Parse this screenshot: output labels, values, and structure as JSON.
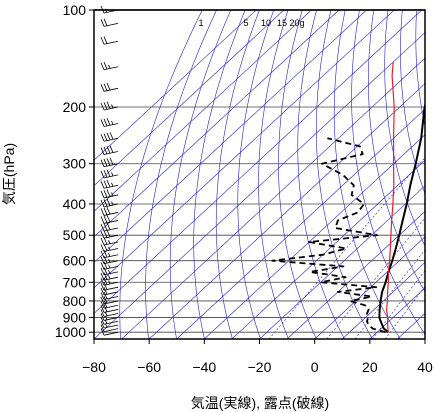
{
  "chart_data": {
    "type": "line",
    "subtype": "skew-T log-p aerological diagram",
    "xlabel": "気温(実線), 露点(破線)",
    "ylabel": "気圧(hPa)",
    "x_ticks": [
      -80,
      -60,
      -40,
      -20,
      0,
      20,
      40
    ],
    "y_ticks": [
      100,
      200,
      300,
      400,
      500,
      600,
      700,
      800,
      900,
      1000
    ],
    "xlim": [
      -80,
      40
    ],
    "ylim": [
      1050,
      100
    ],
    "y_scale": "log",
    "mixing_ratio_labels": [
      "1",
      "5",
      "10",
      "15",
      "20g"
    ],
    "mixing_ratios": [
      1,
      5,
      10,
      15,
      20
    ],
    "colors": {
      "temperature": "#000000",
      "dewpoint": "#000000",
      "parcel": "#e8202a",
      "guides": "#1f1fd6",
      "isobars": "#444444"
    },
    "series": [
      {
        "style": "solid",
        "points": [
          {
            "p": 1000,
            "t": 24
          },
          {
            "p": 975,
            "t": 21
          },
          {
            "p": 950,
            "t": 19
          },
          {
            "p": 925,
            "t": 17
          },
          {
            "p": 900,
            "t": 15
          },
          {
            "p": 875,
            "t": 13.5
          },
          {
            "p": 850,
            "t": 12
          },
          {
            "p": 800,
            "t": 9
          },
          {
            "p": 750,
            "t": 6
          },
          {
            "p": 700,
            "t": 3.5
          },
          {
            "p": 650,
            "t": 0.5
          },
          {
            "p": 600,
            "t": -2.5
          },
          {
            "p": 550,
            "t": -6
          },
          {
            "p": 500,
            "t": -10
          },
          {
            "p": 450,
            "t": -14.5
          },
          {
            "p": 400,
            "t": -19.5
          },
          {
            "p": 350,
            "t": -25.5
          },
          {
            "p": 300,
            "t": -32
          },
          {
            "p": 250,
            "t": -40
          },
          {
            "p": 200,
            "t": -51
          },
          {
            "p": 175,
            "t": -56
          },
          {
            "p": 150,
            "t": -61
          },
          {
            "p": 125,
            "t": -65
          },
          {
            "p": 110,
            "t": -69
          },
          {
            "p": 100,
            "t": -70
          }
        ]
      },
      {
        "style": "dashed",
        "points": [
          {
            "p": 1000,
            "t": 23
          },
          {
            "p": 975,
            "t": 17
          },
          {
            "p": 950,
            "t": 14
          },
          {
            "p": 925,
            "t": 12
          },
          {
            "p": 900,
            "t": 11
          },
          {
            "p": 875,
            "t": 9
          },
          {
            "p": 850,
            "t": 8
          },
          {
            "p": 825,
            "t": 5
          },
          {
            "p": 800,
            "t": -2
          },
          {
            "p": 775,
            "t": 4
          },
          {
            "p": 750,
            "t": -10
          },
          {
            "p": 725,
            "t": 2
          },
          {
            "p": 700,
            "t": -20
          },
          {
            "p": 675,
            "t": -13
          },
          {
            "p": 650,
            "t": -28
          },
          {
            "p": 625,
            "t": -18
          },
          {
            "p": 600,
            "t": -46
          },
          {
            "p": 575,
            "t": -30
          },
          {
            "p": 550,
            "t": -24
          },
          {
            "p": 525,
            "t": -40
          },
          {
            "p": 500,
            "t": -18
          },
          {
            "p": 475,
            "t": -36
          },
          {
            "p": 450,
            "t": -38
          },
          {
            "p": 425,
            "t": -34
          },
          {
            "p": 400,
            "t": -35
          },
          {
            "p": 375,
            "t": -43
          },
          {
            "p": 350,
            "t": -46
          },
          {
            "p": 325,
            "t": -54
          },
          {
            "p": 300,
            "t": -66
          },
          {
            "p": 280,
            "t": -55
          },
          {
            "p": 265,
            "t": -59
          },
          {
            "p": 250,
            "t": -74
          }
        ]
      },
      {
        "style": "solid-red",
        "points": [
          {
            "p": 1000,
            "t": 24
          },
          {
            "p": 950,
            "t": 21
          },
          {
            "p": 900,
            "t": 18
          },
          {
            "p": 850,
            "t": 14.5
          },
          {
            "p": 800,
            "t": 11.5
          },
          {
            "p": 750,
            "t": 8
          },
          {
            "p": 700,
            "t": 4.5
          },
          {
            "p": 650,
            "t": 0.5
          },
          {
            "p": 600,
            "t": -3.5
          },
          {
            "p": 550,
            "t": -8
          },
          {
            "p": 500,
            "t": -13
          },
          {
            "p": 450,
            "t": -18.5
          },
          {
            "p": 400,
            "t": -24.5
          },
          {
            "p": 350,
            "t": -31.5
          },
          {
            "p": 300,
            "t": -40
          },
          {
            "p": 250,
            "t": -50
          },
          {
            "p": 200,
            "t": -62
          },
          {
            "p": 160,
            "t": -75
          },
          {
            "p": 145,
            "t": -80
          }
        ]
      }
    ],
    "wind_barbs": [
      {
        "p": 1000,
        "speed": 10
      },
      {
        "p": 975,
        "speed": 10
      },
      {
        "p": 950,
        "speed": 15
      },
      {
        "p": 925,
        "speed": 15
      },
      {
        "p": 900,
        "speed": 15
      },
      {
        "p": 875,
        "speed": 15
      },
      {
        "p": 850,
        "speed": 20
      },
      {
        "p": 825,
        "speed": 20
      },
      {
        "p": 800,
        "speed": 20
      },
      {
        "p": 775,
        "speed": 20
      },
      {
        "p": 750,
        "speed": 20
      },
      {
        "p": 725,
        "speed": 20
      },
      {
        "p": 700,
        "speed": 25
      },
      {
        "p": 675,
        "speed": 25
      },
      {
        "p": 650,
        "speed": 25
      },
      {
        "p": 625,
        "speed": 25
      },
      {
        "p": 600,
        "speed": 25
      },
      {
        "p": 575,
        "speed": 25
      },
      {
        "p": 550,
        "speed": 25
      },
      {
        "p": 525,
        "speed": 25
      },
      {
        "p": 500,
        "speed": 30
      },
      {
        "p": 475,
        "speed": 30
      },
      {
        "p": 450,
        "speed": 30
      },
      {
        "p": 425,
        "speed": 30
      },
      {
        "p": 400,
        "speed": 35
      },
      {
        "p": 375,
        "speed": 35
      },
      {
        "p": 350,
        "speed": 35
      },
      {
        "p": 325,
        "speed": 35
      },
      {
        "p": 300,
        "speed": 40
      },
      {
        "p": 275,
        "speed": 40
      },
      {
        "p": 250,
        "speed": 40
      },
      {
        "p": 225,
        "speed": 35
      },
      {
        "p": 200,
        "speed": 35
      },
      {
        "p": 175,
        "speed": 30
      },
      {
        "p": 150,
        "speed": 25
      },
      {
        "p": 125,
        "speed": 20
      },
      {
        "p": 110,
        "speed": 20
      },
      {
        "p": 100,
        "speed": 15
      }
    ]
  }
}
